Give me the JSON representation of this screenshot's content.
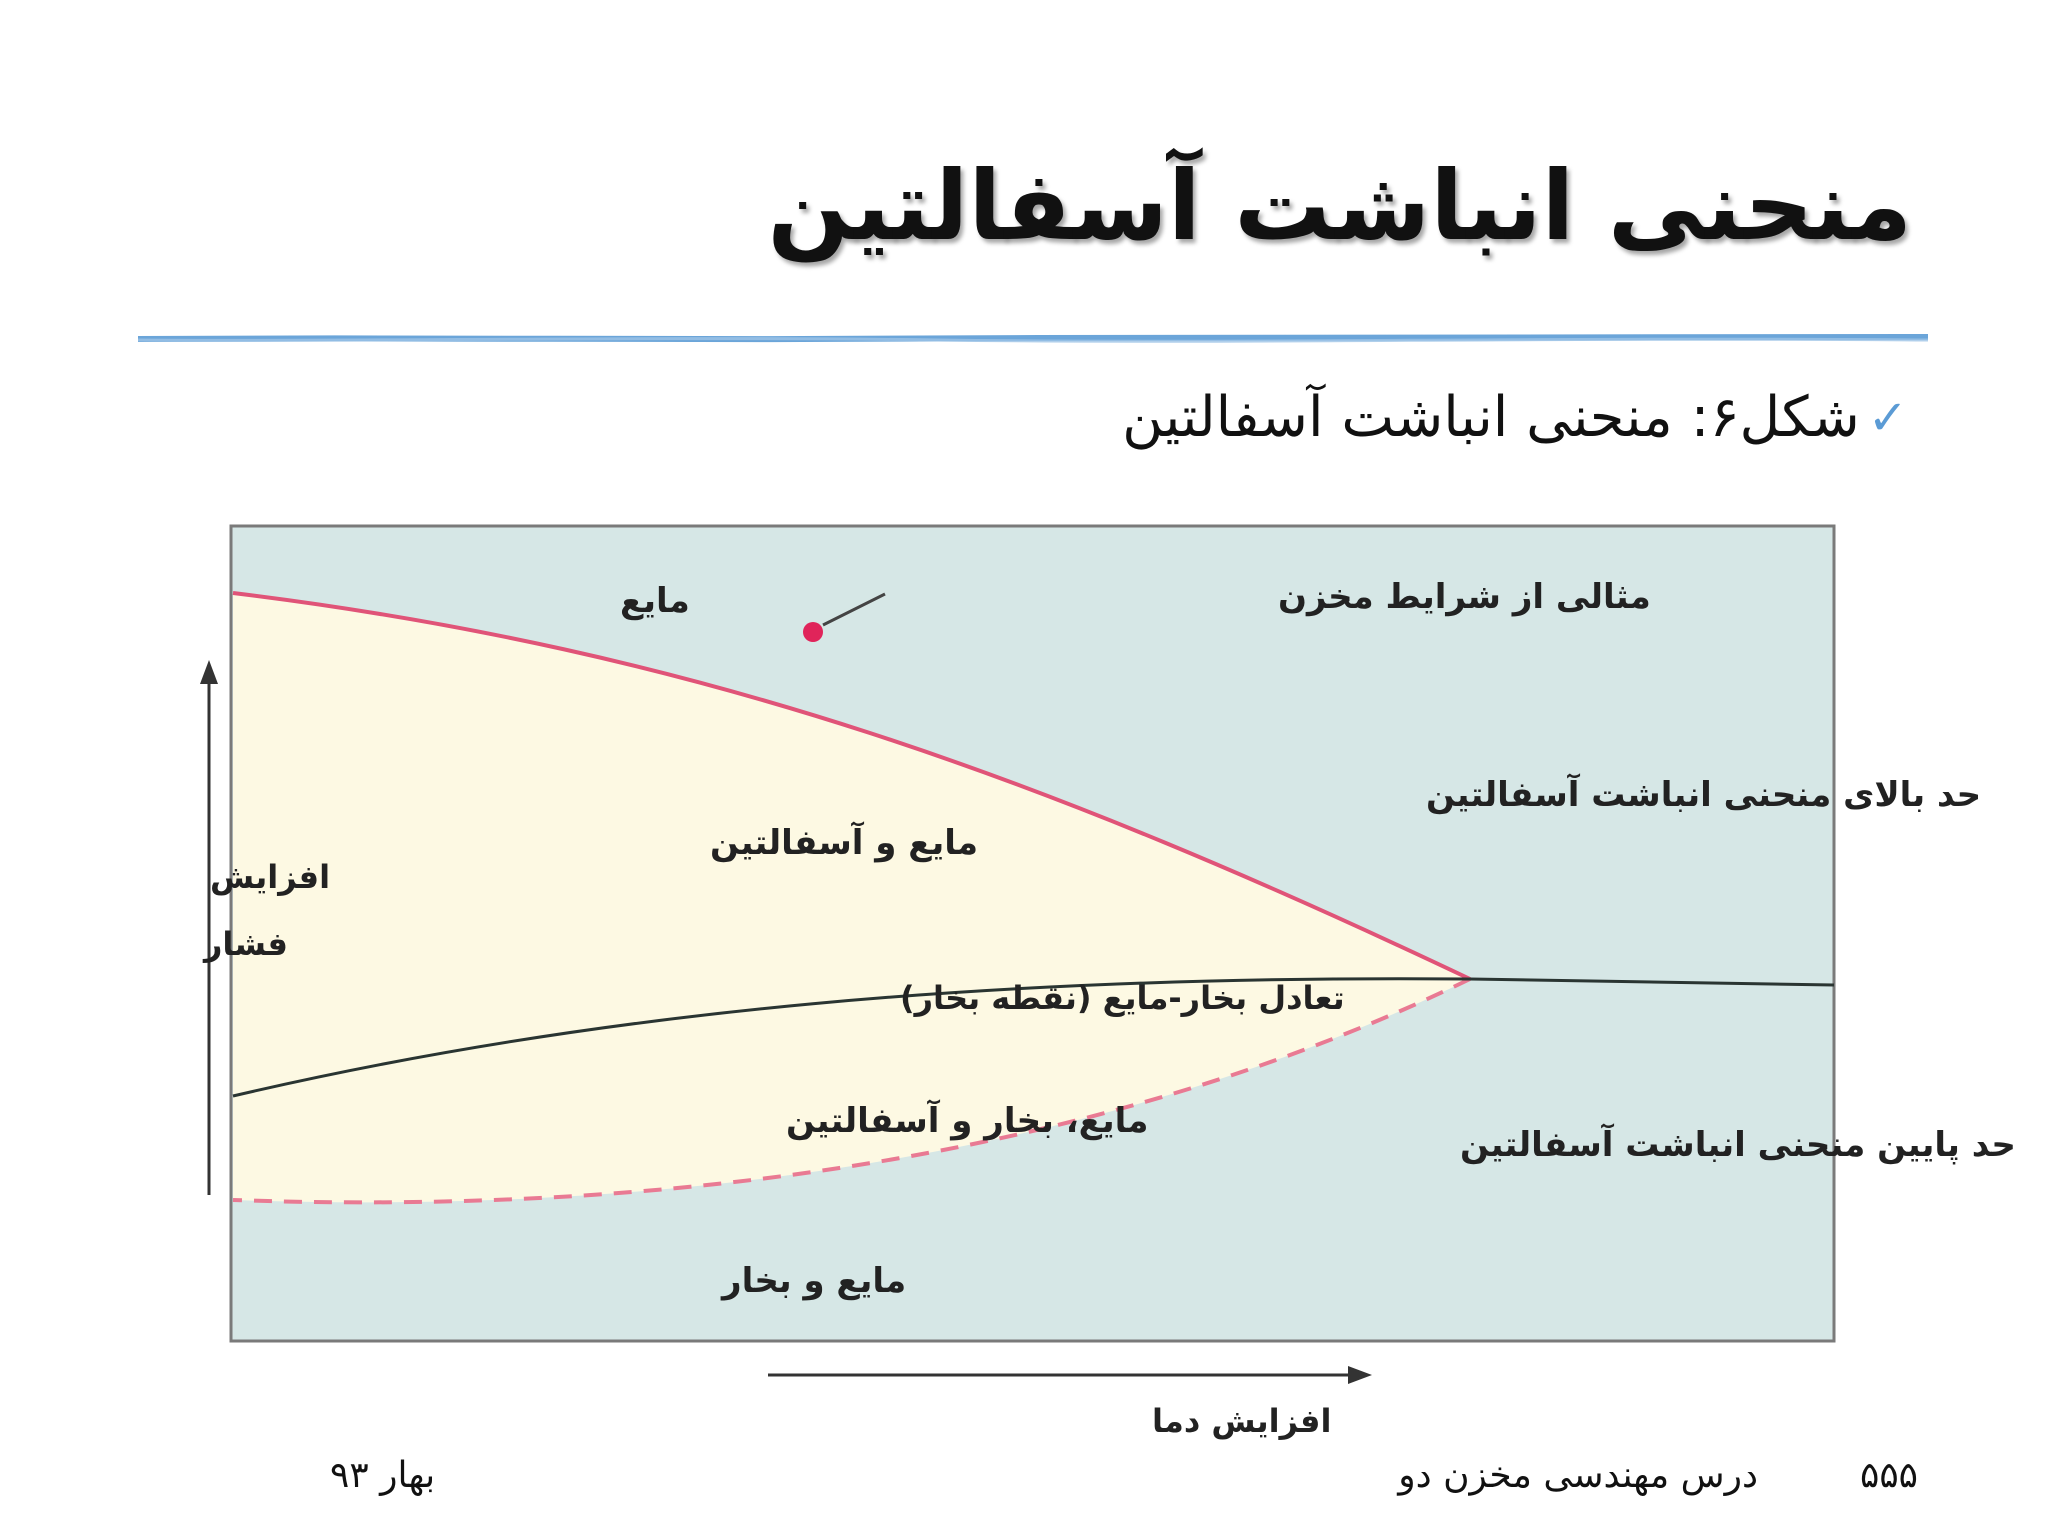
{
  "slide": {
    "title": "منحنی انباشت آسفالتین",
    "bullet_icon": "checkmark-icon",
    "bullet_text": "شکل۶: منحنی انباشت آسفالتین"
  },
  "figure": {
    "labels": {
      "liquid": "مایع",
      "reservoir_example": "مثالی از شرایط مخزن",
      "upper_boundary": "حد بالای منحنی انباشت آسفالتین",
      "liquid_asphaltene": "مایع و آسفالتین",
      "vle": "تعادل بخار-مایع (نقطه بخار)",
      "liquid_vapor_asphaltene": "مایع، بخار و آسفالتین",
      "lower_boundary": "حد پایین منحنی انباشت آسفالتین",
      "liquid_vapor": "مایع و بخار"
    },
    "axes": {
      "y_label_line1": "افزایش",
      "y_label_line2": "فشار",
      "x_label": "افزایش دما"
    },
    "colors": {
      "background": "#d6e7e6",
      "envelope": "#fdf9e3",
      "upper_curve": "#e05478",
      "lower_curve": "#e97a93",
      "vle_curve": "#2a3532",
      "point": "#e0245a",
      "rule": "#5b9bd5"
    }
  },
  "footer": {
    "page_number": "۵۵۵",
    "course": "درس مهندسی مخزن دو",
    "term": "بهار ۹۳"
  }
}
